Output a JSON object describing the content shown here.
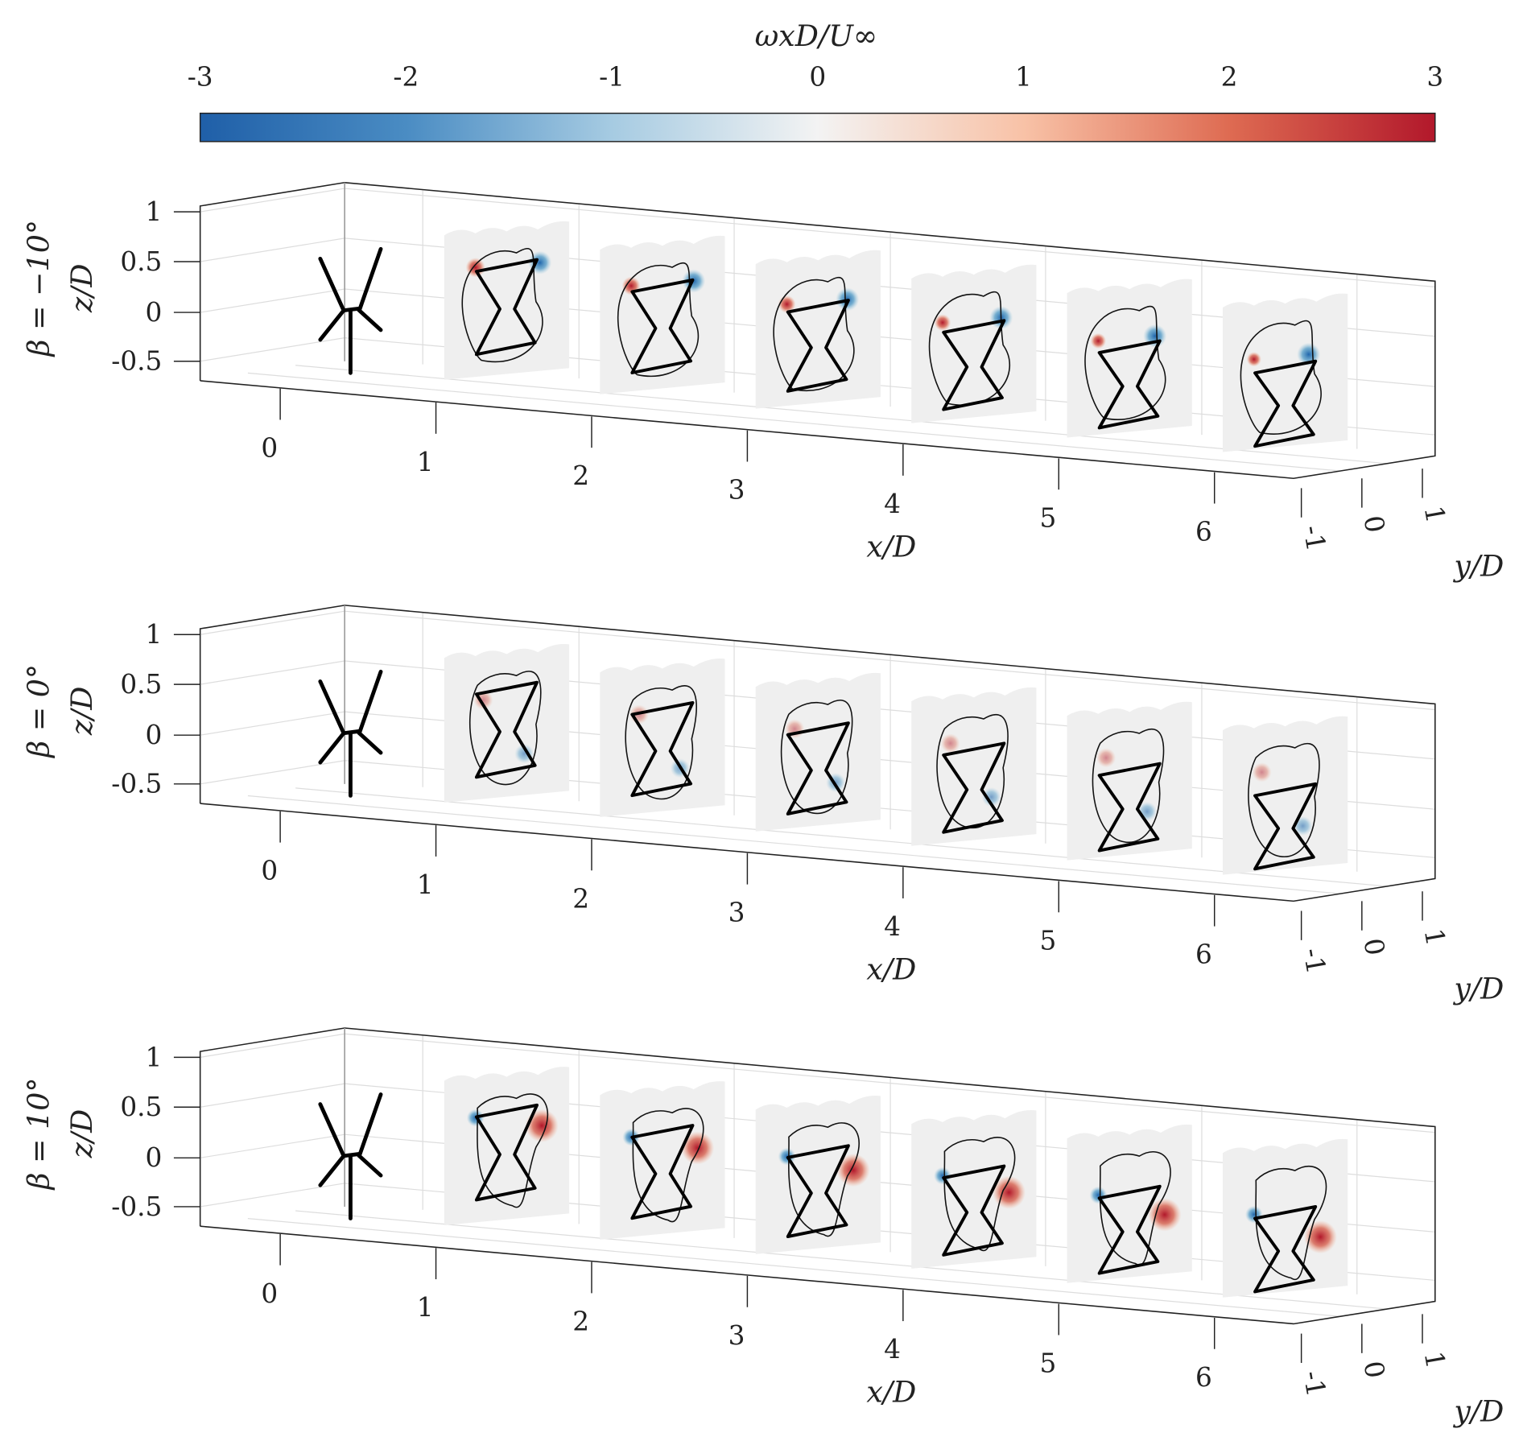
{
  "chart_data": {
    "type": "heatmap",
    "title": "",
    "colorbar": {
      "label": "ωxD/U∞",
      "range": [
        -3,
        3
      ],
      "ticks": [
        "-3",
        "-2",
        "-1",
        "0",
        "1",
        "2",
        "3"
      ],
      "colors": [
        "#1f5fa8",
        "#4a8cc3",
        "#a6cbe2",
        "#f3f3f3",
        "#f8c2a7",
        "#de6b52",
        "#b2182b"
      ]
    },
    "xlabel": "x/D",
    "ylabel": "z/D",
    "zlabel": "y/D",
    "x_ticks": [
      "0",
      "1",
      "2",
      "3",
      "4",
      "5",
      "6"
    ],
    "z_ticks": [
      "1",
      "0.5",
      "0",
      "-0.5"
    ],
    "y_ticks": [
      "-1",
      "0",
      "1"
    ],
    "slice_positions_xD": [
      1,
      2,
      3,
      4,
      5,
      6
    ],
    "panels": [
      {
        "label": "β = −10°",
        "yaw_deg": -10
      },
      {
        "label": "β = 0°",
        "yaw_deg": 0
      },
      {
        "label": "β = 10°",
        "yaw_deg": 10
      }
    ]
  }
}
